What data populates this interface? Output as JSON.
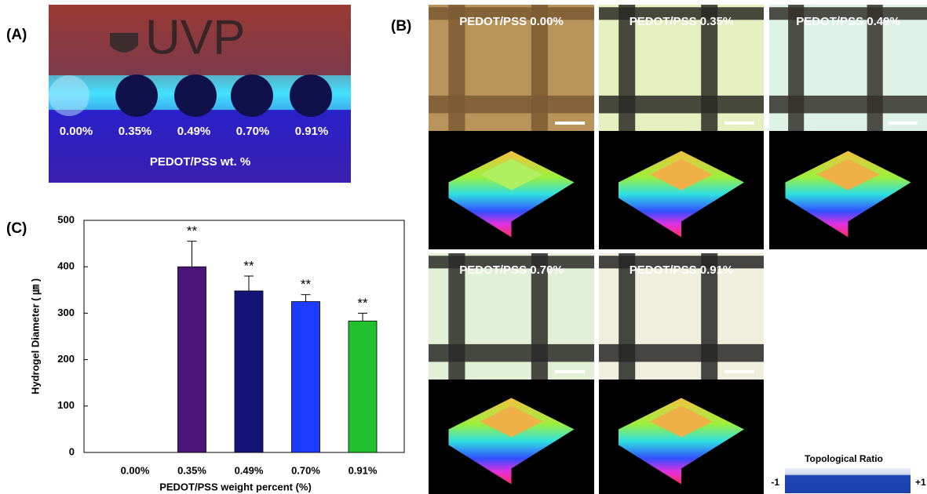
{
  "panel_labels": [
    "(A)",
    "(B)",
    "(C)"
  ],
  "panel_a": {
    "logo": "UVP",
    "concentrations": [
      "0.00%",
      "0.35%",
      "0.49%",
      "0.70%",
      "0.91%"
    ],
    "caption": "PEDOT/PSS wt. %"
  },
  "panel_b": {
    "images": [
      "PEDOT/PSS 0.00%",
      "PEDOT/PSS 0.35%",
      "PEDOT/PSS 0.49%",
      "PEDOT/PSS 0.70%",
      "PEDOT/PSS 0.91%"
    ],
    "legend": {
      "title": "Topological Ratio",
      "min": "-1",
      "max": "+1"
    }
  },
  "chart_data": {
    "type": "bar",
    "xlabel": "PEDOT/PSS weight percent (%)",
    "ylabel": "Hydrogel Diameter ( ㎛ )",
    "categories": [
      "0.00%",
      "0.35%",
      "0.49%",
      "0.70%",
      "0.91%"
    ],
    "values": [
      null,
      400,
      348,
      325,
      283
    ],
    "errors": [
      null,
      55,
      32,
      15,
      17
    ],
    "significance": [
      null,
      "**",
      "**",
      "**",
      "**"
    ],
    "colors": [
      "#5a2a8a",
      "#4a1478",
      "#141478",
      "#1e3cff",
      "#22c02e"
    ],
    "ylim": [
      0,
      500
    ],
    "yticks": [
      0,
      100,
      200,
      300,
      400,
      500
    ]
  }
}
